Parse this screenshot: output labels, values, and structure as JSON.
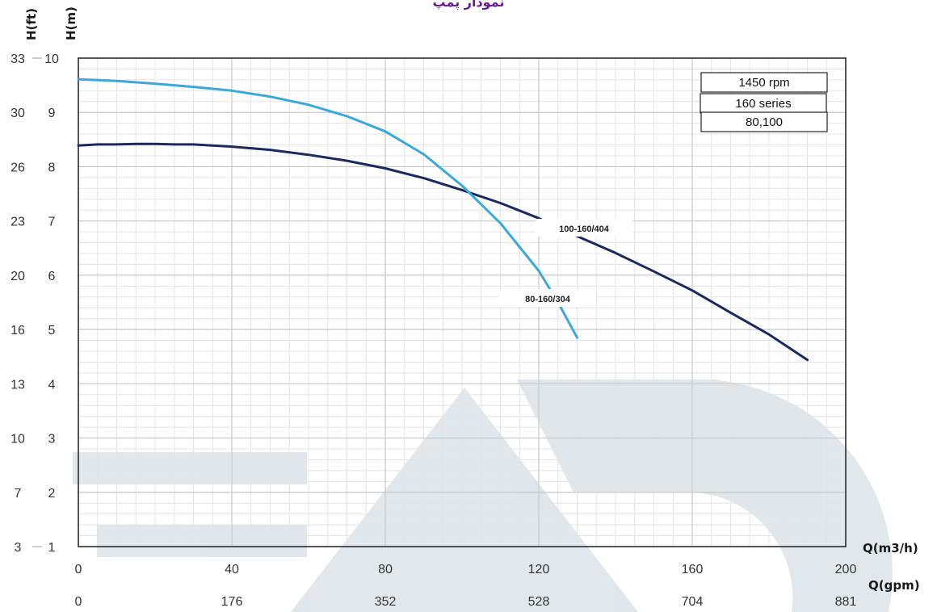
{
  "chart_data": {
    "type": "line",
    "title": "نمودار پمپ",
    "xlabel": "Q(m3/h)",
    "xlabel2": "Q(gpm)",
    "ylabel": "H(m)",
    "ylabel2": "H(ft)",
    "xlim": [
      0,
      200
    ],
    "ylim": [
      1,
      10
    ],
    "x_ticks": [
      "0",
      "40",
      "80",
      "120",
      "160",
      "200"
    ],
    "x2_ticks": [
      "0",
      "176",
      "352",
      "528",
      "704",
      "881"
    ],
    "y_ticks": [
      "1",
      "2",
      "3",
      "4",
      "5",
      "6",
      "7",
      "8",
      "9",
      "10"
    ],
    "y2_ticks": [
      "3",
      "7",
      "10",
      "13",
      "16",
      "20",
      "23",
      "26",
      "30",
      "33"
    ],
    "grid": true,
    "legend_box": [
      "1450 rpm",
      "160 series",
      "80,100"
    ],
    "series": [
      {
        "name": "100-160/404",
        "color": "#1b2a5e",
        "x": [
          0,
          5,
          10,
          15,
          20,
          25,
          30,
          35,
          40,
          50,
          60,
          70,
          80,
          90,
          100,
          110,
          120,
          130,
          140,
          150,
          160,
          170,
          180,
          190
        ],
        "y": [
          8.39,
          8.41,
          8.41,
          8.42,
          8.42,
          8.41,
          8.41,
          8.39,
          8.37,
          8.31,
          8.22,
          8.11,
          7.97,
          7.79,
          7.57,
          7.33,
          7.05,
          6.72,
          6.41,
          6.07,
          5.72,
          5.31,
          4.91,
          4.44
        ]
      },
      {
        "name": "80-160/304",
        "color": "#3aa8dc",
        "x": [
          0,
          10,
          20,
          30,
          40,
          50,
          60,
          70,
          80,
          90,
          100,
          110,
          120,
          125,
          130
        ],
        "y": [
          9.61,
          9.58,
          9.53,
          9.47,
          9.4,
          9.29,
          9.14,
          8.93,
          8.65,
          8.23,
          7.65,
          6.96,
          6.08,
          5.5,
          4.85
        ]
      }
    ]
  }
}
